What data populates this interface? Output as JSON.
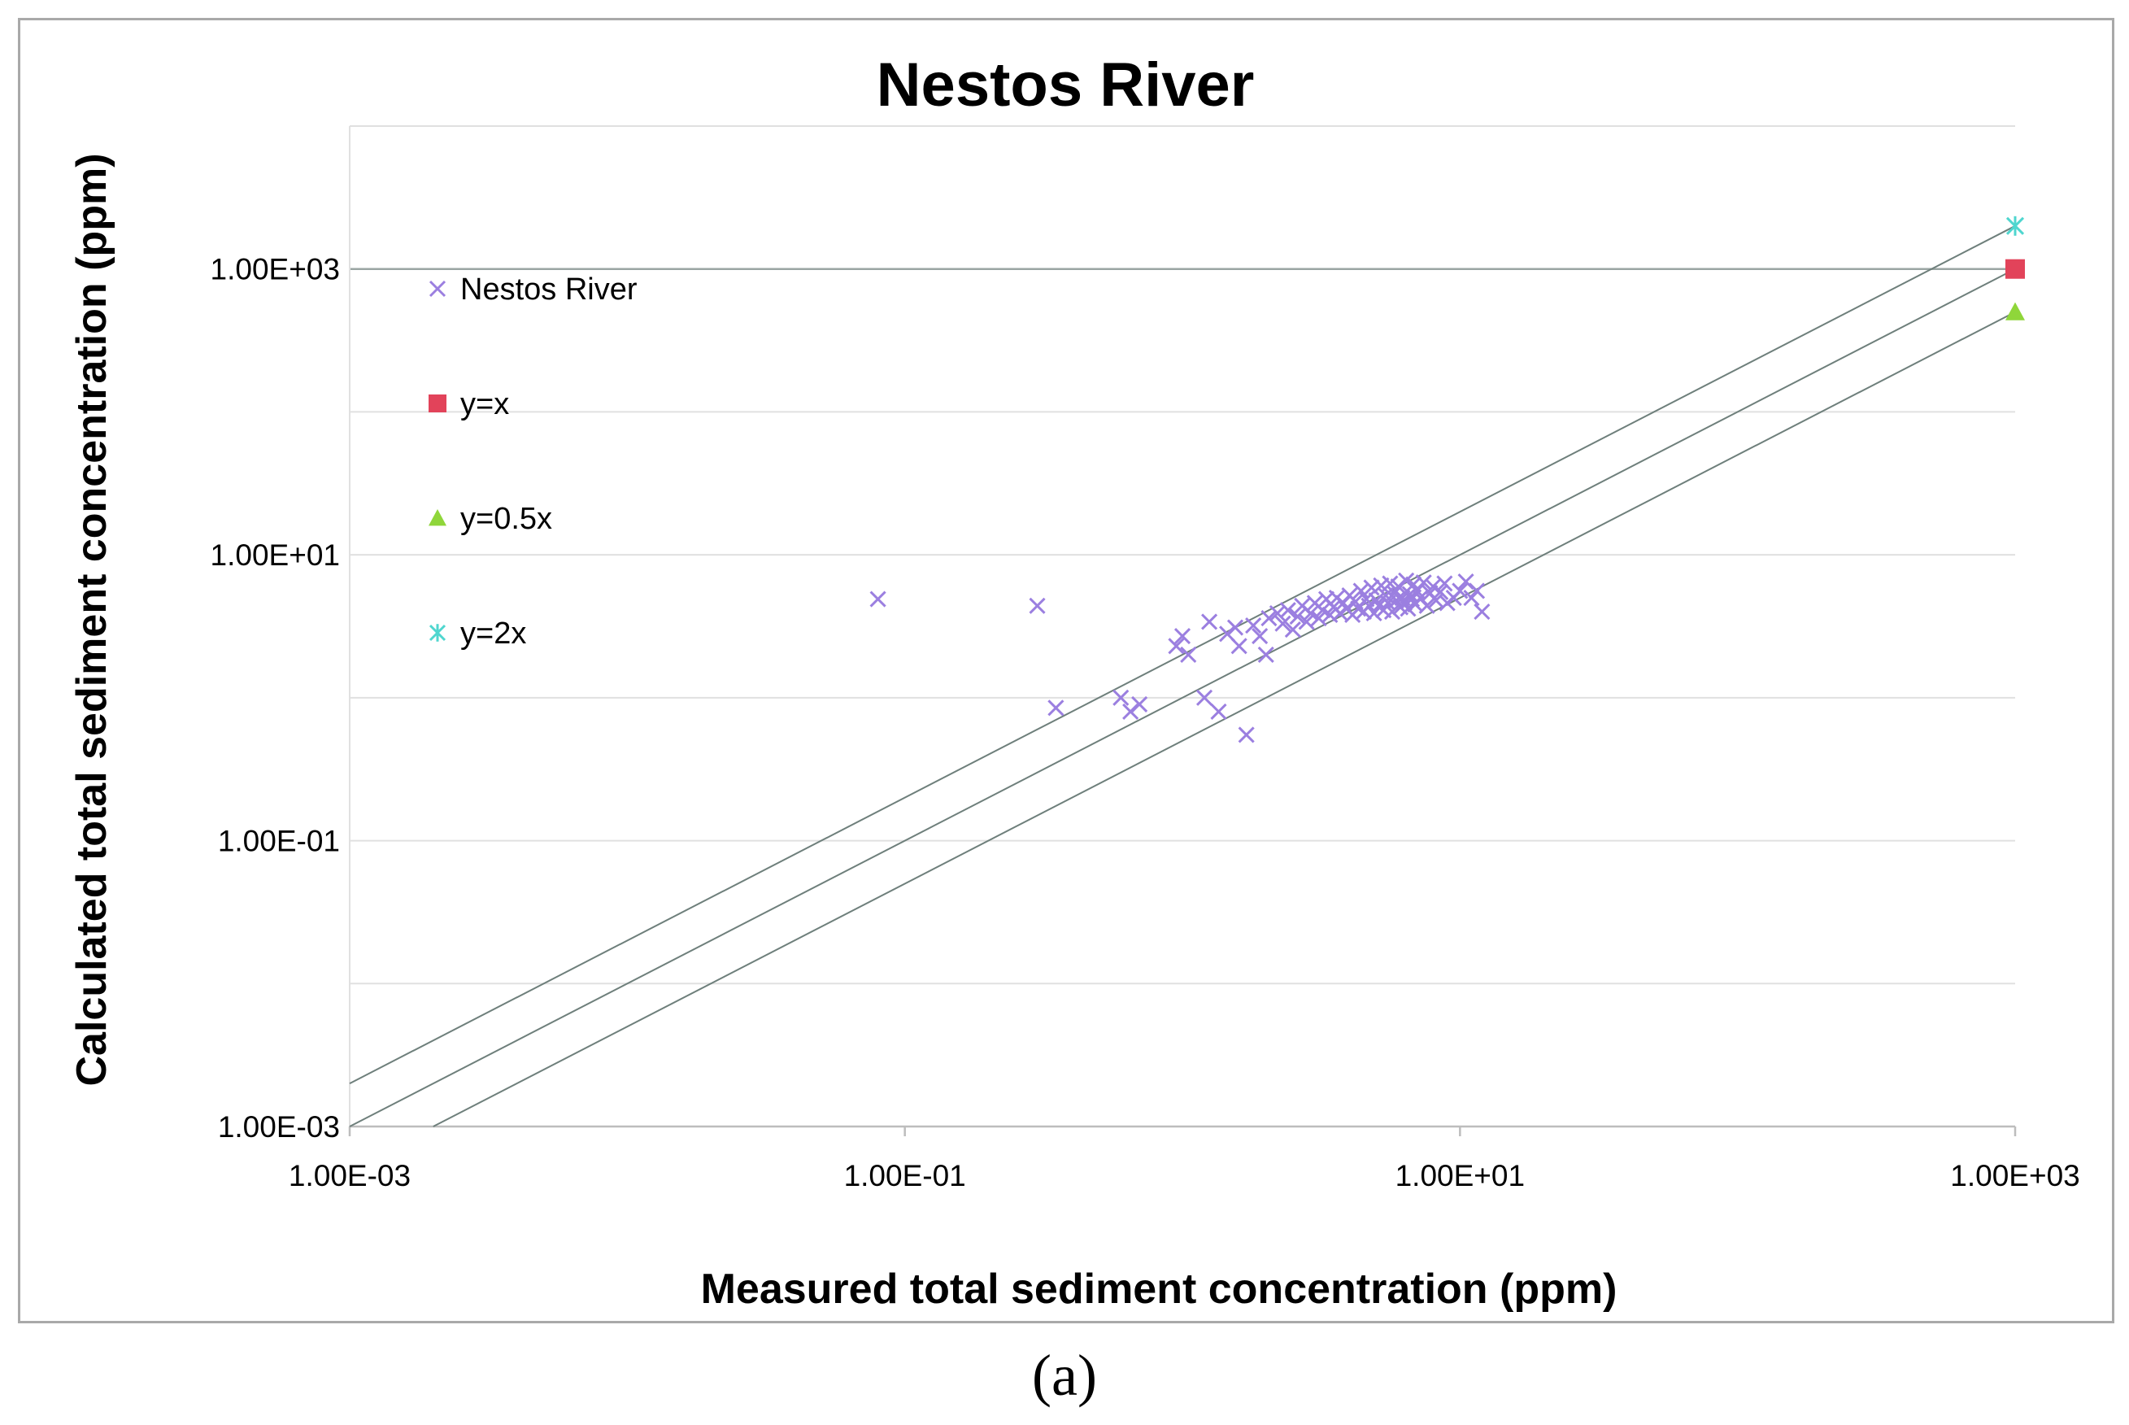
{
  "chart_data": {
    "type": "scatter",
    "title": "Nestos River",
    "xlabel": "Measured total sediment concentration (ppm)",
    "ylabel": "Calculated total sediment concentration (ppm)",
    "xscale": "log",
    "yscale": "log",
    "xlim": [
      0.001,
      1000
    ],
    "ylim": [
      0.001,
      10000
    ],
    "xticks": [
      0.001,
      0.1,
      10,
      1000
    ],
    "xtick_labels": [
      "1.00E-03",
      "1.00E-01",
      "1.00E+01",
      "1.00E+03"
    ],
    "yticks": [
      0.001,
      0.1,
      10,
      1000
    ],
    "ytick_labels": [
      "1.00E-03",
      "1.00E-01",
      "1.00E+01",
      "1.00E+03"
    ],
    "legend_position": "top-left",
    "series": [
      {
        "name": "Nestos River",
        "marker": "x",
        "color": "#9b7fe0",
        "points": [
          [
            0.08,
            4.9
          ],
          [
            0.3,
            4.4
          ],
          [
            0.35,
            0.85
          ],
          [
            0.6,
            1.0
          ],
          [
            0.65,
            0.8
          ],
          [
            0.7,
            0.9
          ],
          [
            0.95,
            2.3
          ],
          [
            1.0,
            2.7
          ],
          [
            1.05,
            2.0
          ],
          [
            1.2,
            1.0
          ],
          [
            1.25,
            3.4
          ],
          [
            1.35,
            0.8
          ],
          [
            1.45,
            2.8
          ],
          [
            1.55,
            3.1
          ],
          [
            1.6,
            2.3
          ],
          [
            1.7,
            0.55
          ],
          [
            1.8,
            3.2
          ],
          [
            1.9,
            2.7
          ],
          [
            2.0,
            2.0
          ],
          [
            2.05,
            3.6
          ],
          [
            2.2,
            3.9
          ],
          [
            2.3,
            3.3
          ],
          [
            2.4,
            4.1
          ],
          [
            2.5,
            3.0
          ],
          [
            2.6,
            3.7
          ],
          [
            2.7,
            4.4
          ],
          [
            2.8,
            3.4
          ],
          [
            2.9,
            3.9
          ],
          [
            3.0,
            4.6
          ],
          [
            3.1,
            3.6
          ],
          [
            3.2,
            4.1
          ],
          [
            3.3,
            4.9
          ],
          [
            3.4,
            3.8
          ],
          [
            3.5,
            4.3
          ],
          [
            3.6,
            5.0
          ],
          [
            3.7,
            3.9
          ],
          [
            3.8,
            4.6
          ],
          [
            3.9,
            4.2
          ],
          [
            4.0,
            5.2
          ],
          [
            4.1,
            3.8
          ],
          [
            4.2,
            4.7
          ],
          [
            4.3,
            4.2
          ],
          [
            4.4,
            5.6
          ],
          [
            4.5,
            4.0
          ],
          [
            4.6,
            4.9
          ],
          [
            4.7,
            4.4
          ],
          [
            4.8,
            5.9
          ],
          [
            4.9,
            3.9
          ],
          [
            5.0,
            4.8
          ],
          [
            5.1,
            4.4
          ],
          [
            5.2,
            6.1
          ],
          [
            5.3,
            4.1
          ],
          [
            5.4,
            5.2
          ],
          [
            5.5,
            4.6
          ],
          [
            5.6,
            6.3
          ],
          [
            5.7,
            4.0
          ],
          [
            5.8,
            5.4
          ],
          [
            5.9,
            4.8
          ],
          [
            6.0,
            6.0
          ],
          [
            6.1,
            4.3
          ],
          [
            6.2,
            5.0
          ],
          [
            6.3,
            4.6
          ],
          [
            6.4,
            6.6
          ],
          [
            6.5,
            4.2
          ],
          [
            6.6,
            5.3
          ],
          [
            6.7,
            4.9
          ],
          [
            6.8,
            6.2
          ],
          [
            6.9,
            4.5
          ],
          [
            7.0,
            5.6
          ],
          [
            7.2,
            5.0
          ],
          [
            7.4,
            6.4
          ],
          [
            7.6,
            4.4
          ],
          [
            7.8,
            5.4
          ],
          [
            8.0,
            6.0
          ],
          [
            8.2,
            4.8
          ],
          [
            8.5,
            5.5
          ],
          [
            8.8,
            6.3
          ],
          [
            9.0,
            4.6
          ],
          [
            9.5,
            5.0
          ],
          [
            10.0,
            5.6
          ],
          [
            10.5,
            6.5
          ],
          [
            11.0,
            5.0
          ],
          [
            11.5,
            5.6
          ],
          [
            12.0,
            4.0
          ]
        ]
      },
      {
        "name": "y=x",
        "marker": "square",
        "color": "#e2435a",
        "line_points": [
          [
            0.001,
            0.001
          ],
          [
            1000,
            1000
          ]
        ]
      },
      {
        "name": "y=0.5x",
        "marker": "triangle",
        "color": "#8fd63a",
        "line_points": [
          [
            0.002,
            0.001
          ],
          [
            1000,
            500
          ]
        ]
      },
      {
        "name": "y=2x",
        "marker": "star",
        "color": "#4fd6cf",
        "line_points": [
          [
            0.001,
            0.002
          ],
          [
            1000,
            2000
          ]
        ]
      }
    ],
    "grid": {
      "horizontal": true,
      "vertical": false
    }
  },
  "caption": "(a)"
}
